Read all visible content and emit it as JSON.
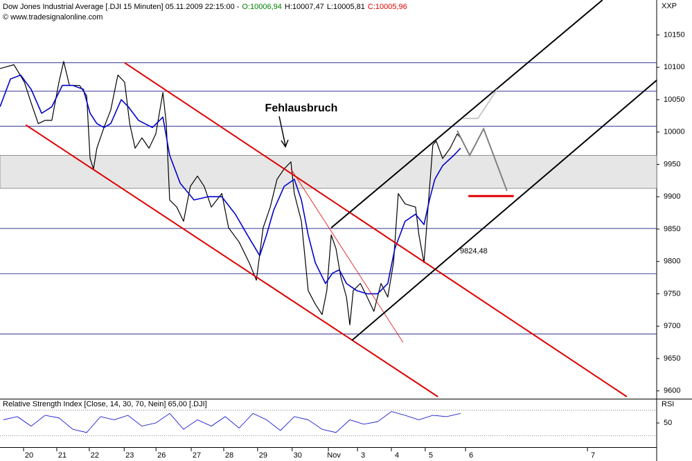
{
  "chart_data": [
    {
      "type": "line",
      "title": "Dow Jones Industrial Average [.DJI  15 Minuten] 05.11.2009 22:15:00 -",
      "quote": [
        {
          "label": "O:10006,94",
          "color": "#008000"
        },
        {
          "label": "H:10007,47",
          "color": "#000000"
        },
        {
          "label": "L:10005,81",
          "color": "#000000"
        },
        {
          "label": "C:10005,96",
          "color": "#e00000"
        }
      ],
      "source": "© www.tradesignalonline.com",
      "y_label": "XXP",
      "xlim": [
        -0.86,
        18.53
      ],
      "ylim": [
        9589,
        10204
      ],
      "yticks": [
        9600,
        9650,
        9700,
        9750,
        9800,
        9850,
        9900,
        9950,
        10000,
        10050,
        10100,
        10150
      ],
      "xticks": [
        {
          "value": 0,
          "label": "20"
        },
        {
          "value": 0.98,
          "label": "21"
        },
        {
          "value": 1.94,
          "label": "22"
        },
        {
          "value": 2.97,
          "label": "23"
        },
        {
          "value": 3.91,
          "label": "26"
        },
        {
          "value": 4.95,
          "label": "27"
        },
        {
          "value": 5.91,
          "label": "28"
        },
        {
          "value": 6.91,
          "label": "29"
        },
        {
          "value": 7.93,
          "label": "30"
        },
        {
          "value": 9.0,
          "label": "Nov"
        },
        {
          "value": 9.86,
          "label": "3"
        },
        {
          "value": 10.86,
          "label": "4"
        },
        {
          "value": 11.86,
          "label": "5"
        },
        {
          "value": 13.05,
          "label": "6"
        },
        {
          "value": 16.65,
          "label": "7"
        }
      ],
      "series": [
        {
          "color": "#000000",
          "width": 1.2,
          "x": [
            -0.86,
            -0.45,
            -0.14,
            0.06,
            0.27,
            0.47,
            0.67,
            0.88,
            1.02,
            1.19,
            1.49,
            1.7,
            1.8,
            1.9,
            2.0,
            2.21,
            2.41,
            2.62,
            2.82,
            2.97,
            3.13,
            3.33,
            3.54,
            3.74,
            3.95,
            4.05,
            4.15,
            4.36,
            4.56,
            4.76,
            4.97,
            5.17,
            5.38,
            5.69,
            5.89,
            6.2,
            6.5,
            6.71,
            6.91,
            7.12,
            7.32,
            7.53,
            7.73,
            7.83,
            8.04,
            8.14,
            8.24,
            8.45,
            8.65,
            8.79,
            8.92,
            9.06,
            9.2,
            9.37,
            9.47,
            9.57,
            9.78,
            9.98,
            10.18,
            10.39,
            10.59,
            10.76,
            10.9,
            11.1,
            11.41,
            11.51,
            11.66,
            11.78,
            11.92,
            12.02,
            12.21,
            12.43,
            12.64,
            12.74
          ],
          "values": [
            10098,
            10104,
            10077,
            10045,
            10013,
            10018,
            10018,
            10077,
            10109,
            10072,
            10072,
            10056,
            9959,
            9943,
            9975,
            10007,
            10034,
            10088,
            10077,
            10013,
            9975,
            9991,
            9975,
            9997,
            10061,
            10013,
            9895,
            9884,
            9862,
            9916,
            9932,
            9916,
            9884,
            9905,
            9852,
            9830,
            9798,
            9771,
            9852,
            9884,
            9927,
            9943,
            9954,
            9905,
            9862,
            9809,
            9755,
            9734,
            9718,
            9755,
            9841,
            9820,
            9777,
            9745,
            9702,
            9755,
            9766,
            9745,
            9723,
            9766,
            9745,
            9798,
            9905,
            9889,
            9884,
            9841,
            9798,
            9884,
            9980,
            9986,
            9959,
            9975,
            9997,
            9991
          ]
        },
        {
          "color": "#0000cc",
          "width": 1.6,
          "x": [
            -0.86,
            -0.55,
            -0.25,
            0.06,
            0.37,
            0.67,
            0.98,
            1.29,
            1.6,
            1.8,
            2.0,
            2.21,
            2.41,
            2.72,
            2.93,
            3.23,
            3.64,
            3.95,
            4.15,
            4.46,
            4.87,
            5.28,
            5.69,
            6.09,
            6.5,
            6.81,
            7.01,
            7.22,
            7.53,
            7.83,
            8.04,
            8.24,
            8.45,
            8.75,
            8.96,
            9.16,
            9.37,
            9.67,
            9.98,
            10.29,
            10.59,
            10.8,
            11.1,
            11.41,
            11.66,
            11.82,
            11.98,
            12.21,
            12.54,
            12.74
          ],
          "values": [
            10039,
            10082,
            10088,
            10066,
            10029,
            10039,
            10072,
            10072,
            10066,
            10029,
            10013,
            10007,
            10013,
            10050,
            10039,
            10018,
            10007,
            10023,
            9964,
            9921,
            9895,
            9900,
            9900,
            9873,
            9836,
            9809,
            9841,
            9879,
            9916,
            9927,
            9895,
            9841,
            9798,
            9766,
            9782,
            9787,
            9766,
            9755,
            9750,
            9750,
            9766,
            9820,
            9862,
            9873,
            9857,
            9895,
            9927,
            9948,
            9964,
            9975
          ]
        }
      ],
      "zone": [
        9913,
        9964
      ],
      "hlines": [
        10107,
        10063,
        10009,
        9851,
        9781,
        9688
      ],
      "hline_color": "#1a1a80",
      "trendlines": [
        {
          "color": "#e00000",
          "width": 2,
          "points": [
            [
              2.82,
              10107
            ],
            [
              17.65,
              9591
            ]
          ]
        },
        {
          "color": "#e00000",
          "width": 2,
          "points": [
            [
              -0.1,
              10011
            ],
            [
              12.07,
              9591
            ]
          ]
        },
        {
          "color": "#e00000",
          "width": 0.8,
          "points": [
            [
              7.73,
              9943
            ],
            [
              11.04,
              9675
            ]
          ]
        },
        {
          "color": "#000000",
          "width": 2,
          "points": [
            [
              8.92,
              9852
            ],
            [
              16.93,
              10204
            ]
          ]
        },
        {
          "color": "#000000",
          "width": 2,
          "points": [
            [
              9.53,
              9678
            ],
            [
              18.53,
              10080
            ]
          ]
        },
        {
          "color": "#c8c8c8",
          "width": 2,
          "points": [
            [
              12.8,
              10021
            ],
            [
              13.25,
              10021
            ],
            [
              13.82,
              10066
            ]
          ]
        },
        {
          "color": "#808080",
          "width": 2,
          "points": [
            [
              12.64,
              10002
            ],
            [
              13.01,
              9964
            ],
            [
              13.42,
              10005
            ],
            [
              14.11,
              9909
            ]
          ]
        },
        {
          "color": "#e00000",
          "width": 3,
          "points": [
            [
              12.97,
              9901
            ],
            [
              14.31,
              9901
            ]
          ]
        }
      ],
      "annotations": [
        "Fehlausbruch",
        "9824,48"
      ]
    },
    {
      "type": "line",
      "title": "Relative Strength Index [Close, 14, 30, 70, Nein] 65,00 [.DJI]",
      "y_label": "RSI",
      "xlim": [
        -0.86,
        18.53
      ],
      "ylim": [
        13,
        86
      ],
      "yticks": [
        50
      ],
      "levels": [
        30,
        70
      ],
      "series": [
        {
          "color": "#0000cc",
          "width": 0.8,
          "x": [
            -0.76,
            -0.35,
            0.06,
            0.47,
            0.88,
            1.29,
            1.7,
            2.11,
            2.51,
            2.92,
            3.33,
            3.74,
            4.15,
            4.56,
            4.97,
            5.38,
            5.79,
            6.2,
            6.61,
            7.01,
            7.42,
            7.83,
            8.24,
            8.65,
            9.06,
            9.47,
            9.88,
            10.29,
            10.7,
            11.1,
            11.51,
            11.92,
            12.33,
            12.74
          ],
          "values": [
            55,
            60,
            45,
            62,
            58,
            40,
            35,
            60,
            55,
            62,
            45,
            50,
            65,
            40,
            55,
            45,
            60,
            42,
            65,
            55,
            38,
            60,
            55,
            40,
            35,
            55,
            48,
            52,
            68,
            62,
            55,
            62,
            60,
            65
          ]
        }
      ]
    }
  ]
}
